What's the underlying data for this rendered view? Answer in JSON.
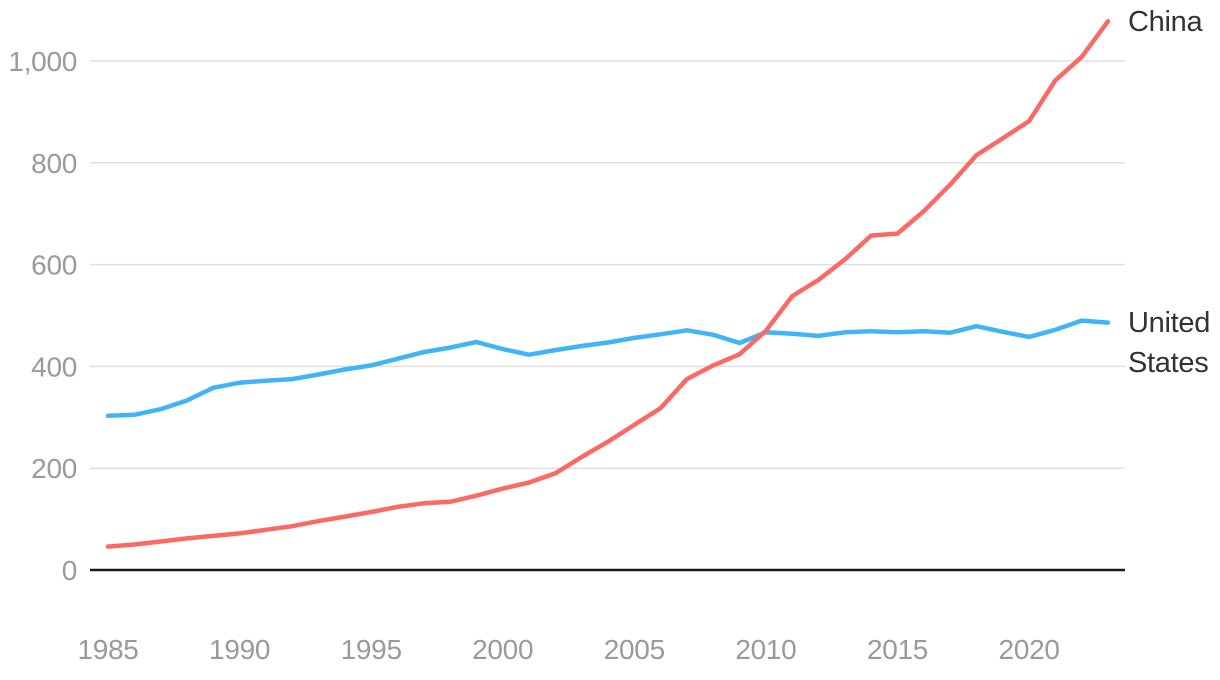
{
  "chart_data": {
    "type": "line",
    "title": "",
    "grid": "horizontal",
    "legend_position": "end-of-line-labels-right",
    "x_axis": {
      "range": [
        1985,
        2023
      ],
      "ticks": [
        1985,
        1990,
        1995,
        2000,
        2005,
        2010,
        2015,
        2020
      ],
      "tick_labels": [
        "1985",
        "1990",
        "1995",
        "2000",
        "2005",
        "2010",
        "2015",
        "2020"
      ]
    },
    "y_axis": {
      "range": [
        0,
        1000
      ],
      "ticks": [
        0,
        200,
        400,
        600,
        800,
        1000
      ],
      "tick_labels": [
        "0",
        "200",
        "400",
        "600",
        "800",
        "1,000"
      ]
    },
    "years": [
      1985,
      1986,
      1987,
      1988,
      1989,
      1990,
      1991,
      1992,
      1993,
      1994,
      1995,
      1996,
      1997,
      1998,
      1999,
      2000,
      2001,
      2002,
      2003,
      2004,
      2005,
      2006,
      2007,
      2008,
      2009,
      2010,
      2011,
      2012,
      2013,
      2014,
      2015,
      2016,
      2017,
      2018,
      2019,
      2020,
      2021,
      2022,
      2023
    ],
    "series": [
      {
        "id": "united-states",
        "name": "United States",
        "label_lines": [
          "United",
          "States"
        ],
        "color": "#41b4f5",
        "values": [
          303,
          305,
          316,
          333,
          358,
          368,
          372,
          375,
          384,
          394,
          402,
          415,
          428,
          437,
          448,
          434,
          423,
          432,
          440,
          447,
          456,
          463,
          471,
          462,
          446,
          467,
          464,
          460,
          467,
          469,
          467,
          469,
          466,
          479,
          468,
          458,
          472,
          490,
          486
        ]
      },
      {
        "id": "china",
        "name": "China",
        "label_lines": [
          "China"
        ],
        "color": "#fa6a64",
        "values": [
          46,
          50,
          56,
          62,
          67,
          72,
          79,
          86,
          96,
          105,
          114,
          124,
          131,
          134,
          146,
          160,
          172,
          190,
          222,
          252,
          285,
          318,
          375,
          402,
          424,
          470,
          538,
          570,
          610,
          657,
          661,
          705,
          757,
          815,
          848,
          882,
          962,
          1008,
          1078
        ]
      }
    ]
  },
  "colors": {
    "background": "#ffffff",
    "grid": "#e0e0e0",
    "axis": "#1b1b1b",
    "tick_text": "#9a9a9a",
    "series_label_text": "#333333",
    "china": "#fa6a64",
    "united_states": "#41b4f5"
  }
}
